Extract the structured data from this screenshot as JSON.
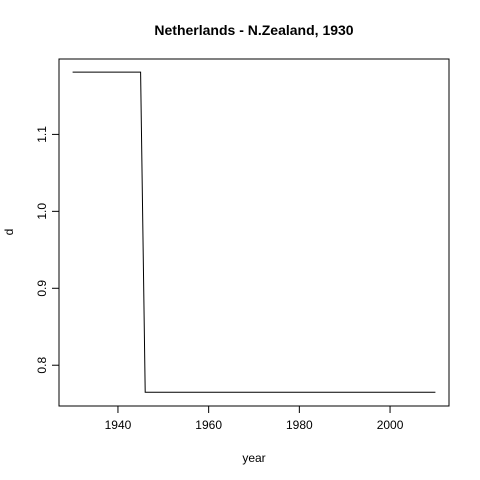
{
  "chart_data": {
    "type": "line",
    "title": "Netherlands - N.Zealand, 1930",
    "xlabel": "year",
    "ylabel": "d",
    "xlim": [
      1927,
      2013
    ],
    "ylim": [
      0.747,
      1.198
    ],
    "x_ticks": [
      1940,
      1960,
      1980,
      2000
    ],
    "x_tick_labels": [
      "1940",
      "1960",
      "1980",
      "2000"
    ],
    "y_ticks": [
      0.8,
      0.9,
      1.0,
      1.1
    ],
    "y_tick_labels": [
      "0.8",
      "0.9",
      "1.0",
      "1.1"
    ],
    "grid": false,
    "line_color": "#000000",
    "series": [
      {
        "x": [
          1930,
          1945,
          1946,
          2010
        ],
        "y": [
          1.181,
          1.181,
          0.765,
          0.765
        ]
      }
    ]
  }
}
